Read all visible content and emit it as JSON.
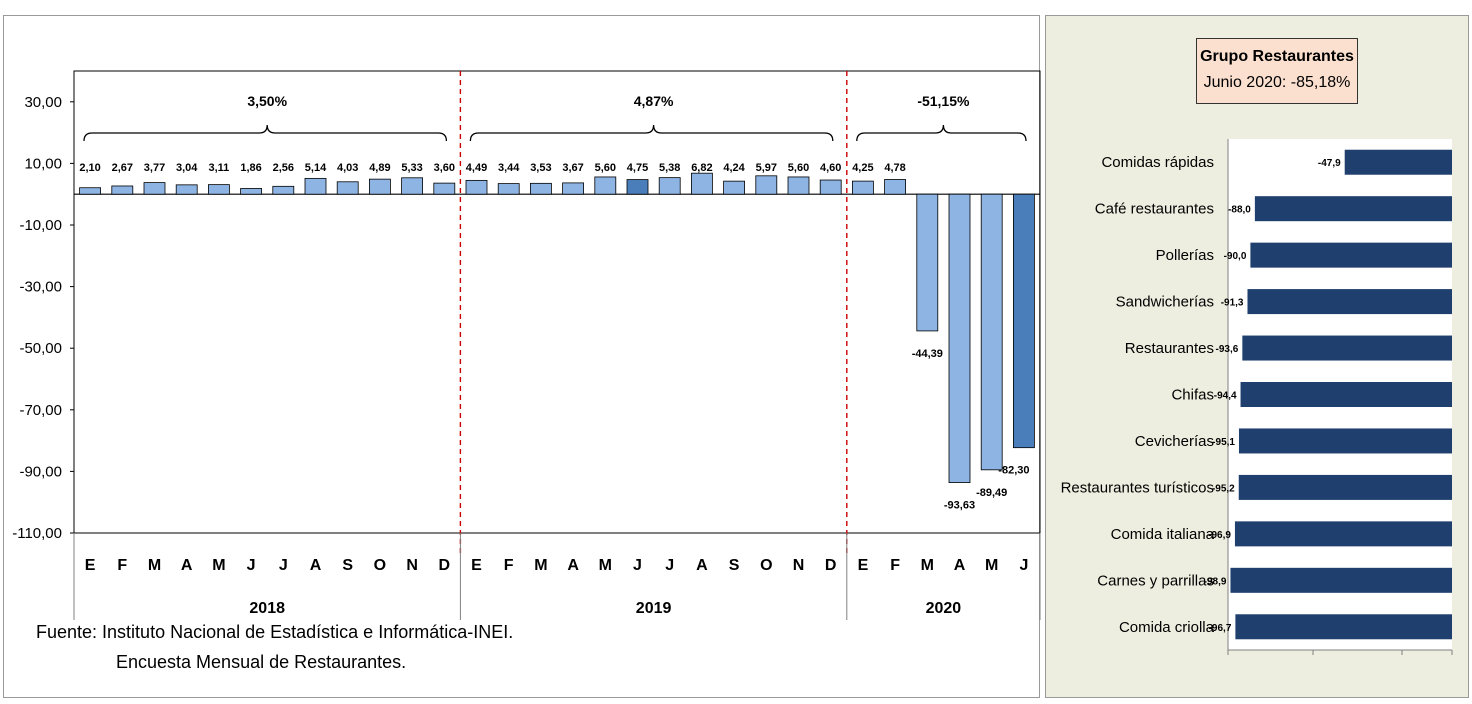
{
  "source": {
    "line1": "Fuente: Instituto Nacional de Estadística e Informática-INEI.",
    "line2": "Encuesta Mensual de  Restaurantes."
  },
  "right_title": {
    "line1": "Grupo Restaurantes",
    "line2": "Junio 2020: -85,18%"
  },
  "colors": {
    "light_bar": "#8eb4e3",
    "dark_bar": "#4a7ebb",
    "navy_bar": "#1f3f6e",
    "divider": "#cc0000"
  },
  "chart_data": [
    {
      "type": "bar",
      "title": "",
      "ylim": [
        -110,
        40
      ],
      "y_ticks": [
        "30,00",
        "10,00",
        "-10,00",
        "-30,00",
        "-50,00",
        "-70,00",
        "-90,00",
        "-110,00"
      ],
      "year_groups": [
        {
          "year": "2018",
          "pct": "3,50%",
          "months": 12
        },
        {
          "year": "2019",
          "pct": "4,87%",
          "months": 12
        },
        {
          "year": "2020",
          "pct": "-51,15%",
          "months": 6
        }
      ],
      "categories": [
        "E",
        "F",
        "M",
        "A",
        "M",
        "J",
        "J",
        "A",
        "S",
        "O",
        "N",
        "D",
        "E",
        "F",
        "M",
        "A",
        "M",
        "J",
        "J",
        "A",
        "S",
        "O",
        "N",
        "D",
        "E",
        "F",
        "M",
        "A",
        "M",
        "J"
      ],
      "values": [
        2.1,
        2.67,
        3.77,
        3.04,
        3.11,
        1.86,
        2.56,
        5.14,
        4.03,
        4.89,
        5.33,
        3.6,
        4.49,
        3.44,
        3.53,
        3.67,
        5.6,
        4.75,
        5.38,
        6.82,
        4.24,
        5.97,
        5.6,
        4.6,
        4.25,
        4.78,
        -44.39,
        -93.63,
        -89.49,
        -82.3
      ],
      "labels": [
        "2,10",
        "2,67",
        "3,77",
        "3,04",
        "3,11",
        "1,86",
        "2,56",
        "5,14",
        "4,03",
        "4,89",
        "5,33",
        "3,60",
        "4,49",
        "3,44",
        "3,53",
        "3,67",
        "5,60",
        "4,75",
        "5,38",
        "6,82",
        "4,24",
        "5,97",
        "5,60",
        "4,60",
        "4,25",
        "4,78",
        "-44,39",
        "-93,63",
        "-89,49",
        "-82,30"
      ],
      "highlighted": [
        17,
        29
      ],
      "grid": false
    },
    {
      "type": "bar",
      "orientation": "horizontal",
      "title": "",
      "categories": [
        "Comidas rápidas",
        "Café restaurantes",
        "Pollerías",
        "Sandwicherías",
        "Restaurantes",
        "Chifas",
        "Cevicherías",
        "Restaurantes turísticos",
        "Comida italiana",
        "Carnes y parrillas",
        "Comida criolla"
      ],
      "values": [
        -47.9,
        -88.0,
        -90.0,
        -91.3,
        -93.6,
        -94.4,
        -95.1,
        -95.2,
        -96.9,
        -98.9,
        -96.7
      ],
      "labels": [
        "-47,9",
        "-88,0",
        "-90,0",
        "-91,3",
        "-93,6",
        "-94,4",
        "-95,1",
        "-95,2",
        "-96,9",
        "-98,9",
        "-96,7"
      ],
      "xlim": [
        -100,
        0
      ],
      "grid": false
    }
  ]
}
